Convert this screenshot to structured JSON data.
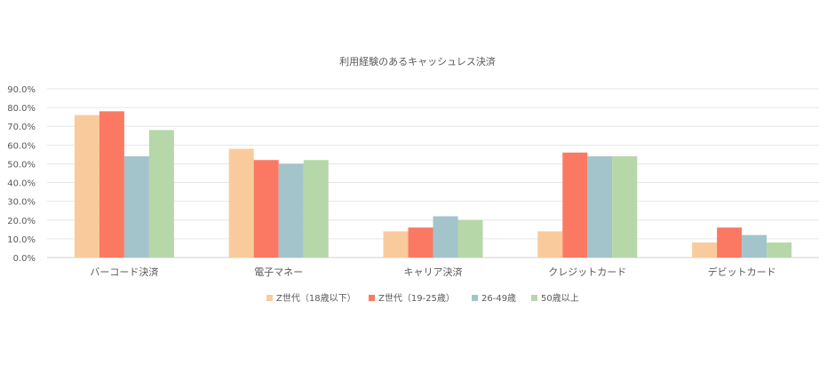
{
  "chart_data": {
    "type": "bar",
    "title": "利用経験のあるキャッシュレス決済",
    "categories": [
      "バーコード決済",
      "電子マネー",
      "キャリア決済",
      "クレジットカード",
      "デビットカード"
    ],
    "series": [
      {
        "name": "Z世代（18歳以下）",
        "color": "#F9CB9C",
        "values": [
          76,
          58,
          14,
          14,
          8
        ]
      },
      {
        "name": "Z世代（19-25歳）",
        "color": "#FB7962",
        "values": [
          78,
          52,
          16,
          56,
          16
        ]
      },
      {
        "name": "26-49歳",
        "color": "#A3C4CA",
        "values": [
          54,
          50,
          22,
          54,
          12
        ]
      },
      {
        "name": "50歳以上",
        "color": "#B6D7A8",
        "values": [
          68,
          52,
          20,
          54,
          8
        ]
      }
    ],
    "ylim": [
      0,
      90
    ],
    "yticks": [
      "0.0%",
      "10.0%",
      "20.0%",
      "30.0%",
      "40.0%",
      "50.0%",
      "60.0%",
      "70.0%",
      "80.0%",
      "90.0%"
    ],
    "ytick_values": [
      0,
      10,
      20,
      30,
      40,
      50,
      60,
      70,
      80,
      90
    ],
    "xlabel": "",
    "ylabel": "",
    "grid": true,
    "legend_position": "bottom"
  }
}
